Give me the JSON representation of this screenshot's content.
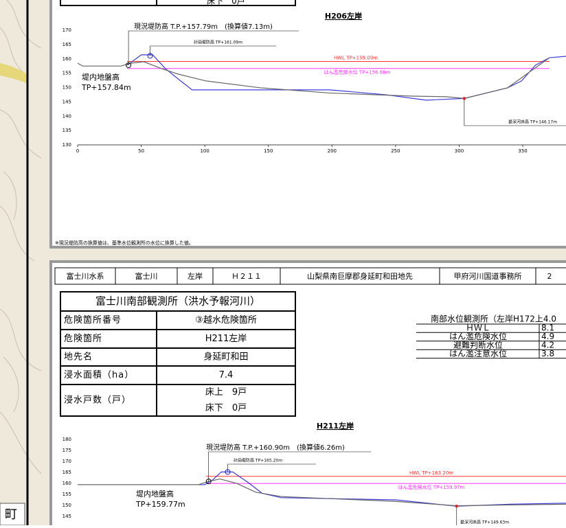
{
  "panel1": {
    "table_tail": "床下　0戸",
    "chart": {
      "type": "line",
      "title": "H206左岸",
      "ylim": [
        130,
        170
      ],
      "yticks": [
        130,
        135,
        140,
        145,
        150,
        155,
        160,
        165,
        170
      ],
      "xlim": [
        0,
        384
      ],
      "xticks": [
        0,
        50,
        100,
        150,
        200,
        250,
        300,
        350
      ],
      "levels": [
        {
          "label": "HWL TP+159.09m",
          "value": 159.09,
          "color": "#ff3030"
        },
        {
          "label": "はん濫危険水位 TP+156.66m",
          "value": 156.66,
          "color": "#ff30ff"
        }
      ],
      "annotations": [
        {
          "label": "現況堤防高 T.P.+157.79m　(換算値7.13m)",
          "value": 157.79,
          "x": 40
        },
        {
          "label": "計画堤防高 TP+161.09m",
          "value": 161.09,
          "x": 57
        },
        {
          "label": "最深河床高 TP+146.17m",
          "value": 146.17,
          "x": 304
        }
      ],
      "land_label": "堤内地盤高",
      "land_value": "TP+157.84m",
      "series": [
        {
          "color": "#3b3bdc",
          "x": [
            39,
            50,
            59,
            69,
            81,
            90,
            198,
            242,
            274,
            304,
            338,
            349,
            360,
            371,
            384
          ],
          "values": [
            157.8,
            161.4,
            161.4,
            156.6,
            152.3,
            149.2,
            149.2,
            147.5,
            145.6,
            146.2,
            149.9,
            152.3,
            157.8,
            160.4,
            160.9
          ]
        },
        {
          "color": "#666666",
          "x": [
            0,
            4,
            34,
            42,
            52,
            66,
            79,
            101,
            144,
            198,
            263,
            290,
            304,
            338,
            371
          ],
          "values": [
            158.5,
            157.5,
            157.5,
            158.5,
            159,
            156.6,
            154.7,
            152.3,
            149.9,
            148.1,
            147,
            146.8,
            146.2,
            149.9,
            160.4
          ]
        }
      ]
    },
    "note": "※現況堤防高の換算値は、基準水位観測所の水位に換算した値。"
  },
  "panel2": {
    "header": [
      "富士川水系",
      "富士川",
      "左岸",
      "Ｈ２１１",
      "山梨県南巨摩郡身延町和田地先",
      "甲府河川国道事務所",
      "2"
    ],
    "info_table": {
      "title": "富士川南部観測所（洪水予報河川）",
      "rows": [
        [
          "危険箇所番号",
          "③越水危険箇所"
        ],
        [
          "危険箇所",
          "H211左岸"
        ],
        [
          "地先名",
          "身延町和田"
        ],
        [
          "浸水面積（ha）",
          "7.4"
        ],
        [
          "浸水戸数（戸）",
          "床上　9戸",
          "床下　0戸"
        ]
      ]
    },
    "level_table": {
      "title": "南部水位観測所（左岸H172上4.0",
      "rows": [
        [
          "ＨＷＬ",
          "8.1"
        ],
        [
          "はん濫危険水位",
          "4.9"
        ],
        [
          "避難判断水位",
          "4.2"
        ],
        [
          "はん濫注意水位",
          "3.8"
        ]
      ]
    },
    "chart": {
      "type": "line",
      "title": "H211左岸",
      "ylim": [
        145,
        180
      ],
      "yticks": [
        145,
        150,
        155,
        160,
        165,
        170,
        175,
        180
      ],
      "xlim": [
        0,
        384
      ],
      "levels": [
        {
          "label": "HWL TP+163.20m",
          "value": 163.2,
          "color": "#ff3030"
        },
        {
          "label": "はん濫危険水位 TP+159.97m",
          "value": 159.97,
          "color": "#ff30ff"
        }
      ],
      "annotations": [
        {
          "label": "現況堤防高 T.P.+160.90m　(換算値6.26m)",
          "value": 160.9,
          "x": 103
        },
        {
          "label": "計画堤防高 TP+165.20m",
          "value": 165.2,
          "x": 118
        },
        {
          "label": "最深河床高 TP+149.63m",
          "value": 149.63,
          "x": 298
        }
      ],
      "land_label": "堤内地盤高",
      "land_value": "TP+159.77m",
      "series": [
        {
          "color": "#3b3bdc",
          "x": [
            0,
            100,
            106,
            113,
            122,
            135,
            145,
            160,
            250,
            298,
            340,
            384
          ],
          "values": [
            159.4,
            159.4,
            161.5,
            165.2,
            165.2,
            160,
            155.5,
            153.5,
            152.5,
            149.6,
            150.5,
            151
          ]
        },
        {
          "color": "#666666",
          "x": [
            0,
            95,
            103,
            112,
            125,
            140,
            160,
            250,
            298,
            340,
            384
          ],
          "values": [
            159.4,
            159.4,
            160.9,
            162,
            160,
            156,
            154,
            151.8,
            149.8,
            150.2,
            150.5
          ]
        }
      ]
    }
  },
  "map_label": "町"
}
